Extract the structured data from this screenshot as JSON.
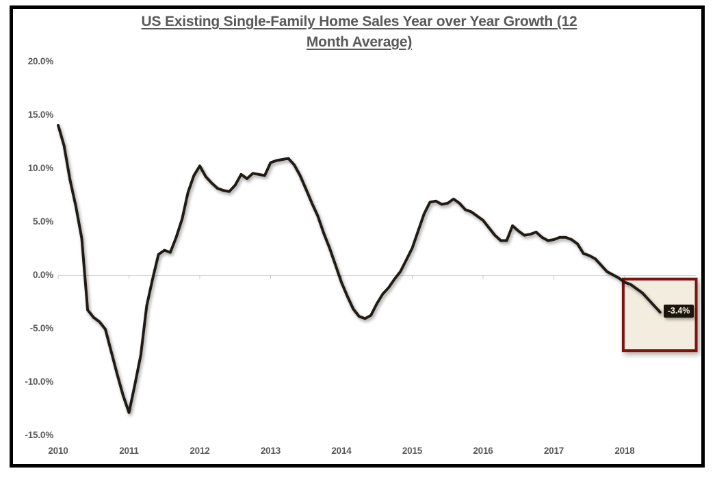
{
  "title": {
    "line1": "US Existing Single-Family Home Sales Year over Year Growth (12",
    "line2": "Month Average)"
  },
  "y_axis": {
    "labels": [
      "20.0%",
      "15.0%",
      "10.0%",
      "5.0%",
      "0.0%",
      "-5.0%",
      "-10.0%",
      "-15.0%"
    ],
    "values": [
      20,
      15,
      10,
      5,
      0,
      -5,
      -10,
      -15
    ]
  },
  "x_axis": {
    "labels": [
      "2010",
      "2011",
      "2012",
      "2013",
      "2014",
      "2015",
      "2016",
      "2017",
      "2018"
    ],
    "years": [
      2010,
      2011,
      2012,
      2013,
      2014,
      2015,
      2016,
      2017,
      2018
    ]
  },
  "chart_data": {
    "type": "line",
    "title": "US Existing Single-Family Home Sales Year over Year Growth (12 Month Average)",
    "series_start": "2010-01",
    "series_end": "2018-07",
    "frequency": "monthly",
    "unit": "percent",
    "values": [
      14.1,
      12.2,
      9.0,
      6.5,
      3.5,
      -3.2,
      -3.9,
      -4.3,
      -5.0,
      -7.1,
      -9.2,
      -11.2,
      -12.8,
      -10.2,
      -7.4,
      -2.8,
      -0.3,
      2.0,
      2.4,
      2.2,
      3.6,
      5.3,
      7.8,
      9.4,
      10.3,
      9.3,
      8.7,
      8.2,
      8.0,
      7.9,
      8.5,
      9.5,
      9.1,
      9.6,
      9.5,
      9.4,
      10.6,
      10.8,
      10.9,
      11.0,
      10.4,
      9.4,
      8.1,
      6.8,
      5.6,
      4.0,
      2.6,
      1.0,
      -0.6,
      -1.9,
      -3.1,
      -3.8,
      -4.0,
      -3.7,
      -2.6,
      -1.7,
      -1.1,
      -0.3,
      0.4,
      1.5,
      2.6,
      4.2,
      5.8,
      6.9,
      7.0,
      6.7,
      6.8,
      7.2,
      6.8,
      6.2,
      6.0,
      5.6,
      5.2,
      4.5,
      3.8,
      3.3,
      3.3,
      4.7,
      4.2,
      3.8,
      3.9,
      4.1,
      3.6,
      3.3,
      3.4,
      3.6,
      3.6,
      3.4,
      3.0,
      2.1,
      1.9,
      1.6,
      1.0,
      0.4,
      0.1,
      -0.2,
      -0.6,
      -0.8,
      -1.2,
      -1.6,
      -2.2,
      -2.8,
      -3.4
    ],
    "ylim": [
      -15,
      20
    ],
    "ytick_step": 5,
    "xticks": [
      2010,
      2011,
      2012,
      2013,
      2014,
      2015,
      2016,
      2017,
      2018
    ],
    "grid": "zero-line-only",
    "legend": "none",
    "line_color": "#211b15",
    "highlight_box": {
      "x0_year": 2017.98,
      "x1_year": 2019.01,
      "y0_pct": -7.0,
      "y1_pct": -0.3,
      "fill": "#f2edde",
      "border_color": "#7d1313"
    },
    "end_label": {
      "text": "-3.4%",
      "value": -3.4,
      "month": "2018-07",
      "bg_color": "#1c150c",
      "text_color": "#f7f1e3"
    }
  },
  "colors": {
    "text": "#595959",
    "gridline": "#d9d9d9",
    "tick": "#c9c9c9",
    "frame_border": "#000000",
    "background": "#ffffff"
  }
}
